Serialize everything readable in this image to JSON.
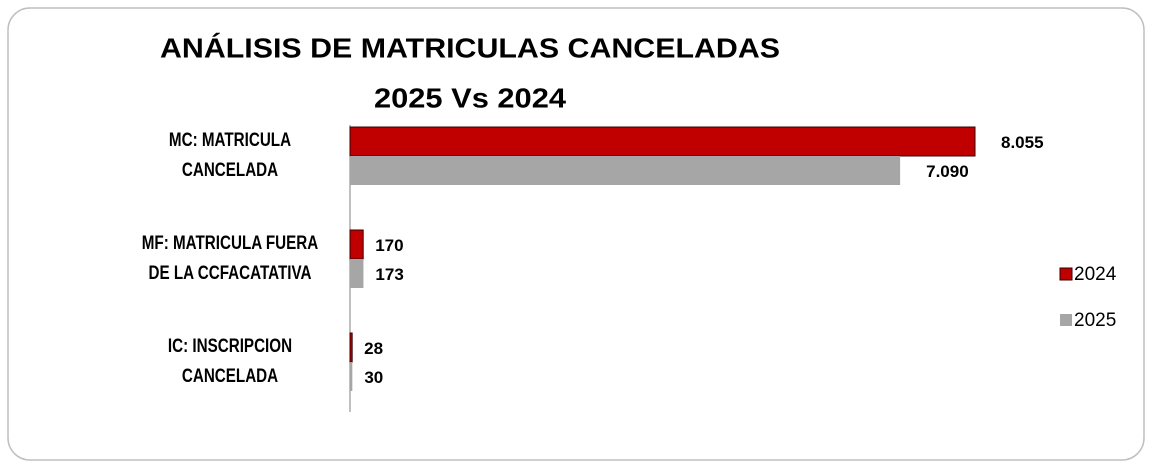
{
  "chart_data": {
    "type": "hbar",
    "title": "ANÁLISIS DE MATRICULAS CANCELADAS",
    "subtitle": "2025 Vs 2024",
    "categories": [
      "MC: MATRICULA CANCELADA",
      "MF: MATRICULA FUERA DE LA CCFACATATIVA",
      "IC: INSCRIPCION CANCELADA"
    ],
    "series": [
      {
        "name": "2024",
        "color": "#c00000",
        "values": [
          8055,
          170,
          28
        ],
        "value_labels": [
          "8.055",
          "170",
          "28"
        ]
      },
      {
        "name": "2025",
        "color": "#a6a6a6",
        "values": [
          7090,
          173,
          30
        ],
        "value_labels": [
          "7.090",
          "173",
          "30"
        ]
      }
    ],
    "xlim": [
      0,
      8055
    ],
    "legend": "right"
  }
}
